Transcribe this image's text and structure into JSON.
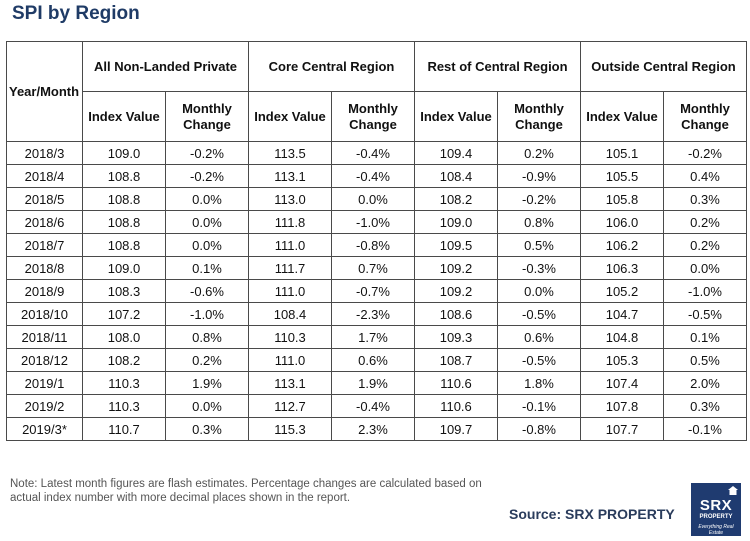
{
  "title": "SPI by Region",
  "table": {
    "year_month_header": "Year/Month",
    "groups": [
      "All Non-Landed Private",
      "Core Central Region",
      "Rest of Central Region",
      "Outside Central Region"
    ],
    "sub_headers": [
      "Index Value",
      "Monthly Change"
    ],
    "rows": [
      [
        "2018/3",
        "109.0",
        "-0.2%",
        "113.5",
        "-0.4%",
        "109.4",
        "0.2%",
        "105.1",
        "-0.2%"
      ],
      [
        "2018/4",
        "108.8",
        "-0.2%",
        "113.1",
        "-0.4%",
        "108.4",
        "-0.9%",
        "105.5",
        "0.4%"
      ],
      [
        "2018/5",
        "108.8",
        "0.0%",
        "113.0",
        "0.0%",
        "108.2",
        "-0.2%",
        "105.8",
        "0.3%"
      ],
      [
        "2018/6",
        "108.8",
        "0.0%",
        "111.8",
        "-1.0%",
        "109.0",
        "0.8%",
        "106.0",
        "0.2%"
      ],
      [
        "2018/7",
        "108.8",
        "0.0%",
        "111.0",
        "-0.8%",
        "109.5",
        "0.5%",
        "106.2",
        "0.2%"
      ],
      [
        "2018/8",
        "109.0",
        "0.1%",
        "111.7",
        "0.7%",
        "109.2",
        "-0.3%",
        "106.3",
        "0.0%"
      ],
      [
        "2018/9",
        "108.3",
        "-0.6%",
        "111.0",
        "-0.7%",
        "109.2",
        "0.0%",
        "105.2",
        "-1.0%"
      ],
      [
        "2018/10",
        "107.2",
        "-1.0%",
        "108.4",
        "-2.3%",
        "108.6",
        "-0.5%",
        "104.7",
        "-0.5%"
      ],
      [
        "2018/11",
        "108.0",
        "0.8%",
        "110.3",
        "1.7%",
        "109.3",
        "0.6%",
        "104.8",
        "0.1%"
      ],
      [
        "2018/12",
        "108.2",
        "0.2%",
        "111.0",
        "0.6%",
        "108.7",
        "-0.5%",
        "105.3",
        "0.5%"
      ],
      [
        "2019/1",
        "110.3",
        "1.9%",
        "113.1",
        "1.9%",
        "110.6",
        "1.8%",
        "107.4",
        "2.0%"
      ],
      [
        "2019/2",
        "110.3",
        "0.0%",
        "112.7",
        "-0.4%",
        "110.6",
        "-0.1%",
        "107.8",
        "0.3%"
      ],
      [
        "2019/3*",
        "110.7",
        "0.3%",
        "115.3",
        "2.3%",
        "109.7",
        "-0.8%",
        "107.7",
        "-0.1%"
      ]
    ]
  },
  "note": "Note: Latest month figures are flash estimates. Percentage changes are calculated based on actual index number with more decimal places shown in the report.",
  "source": "Source:  SRX PROPERTY",
  "logo": {
    "brand": "SRX",
    "sub": "PROPERTY",
    "tagline": "Everything Real Estate",
    "icon": "house-icon",
    "color": "#1f3b70"
  }
}
